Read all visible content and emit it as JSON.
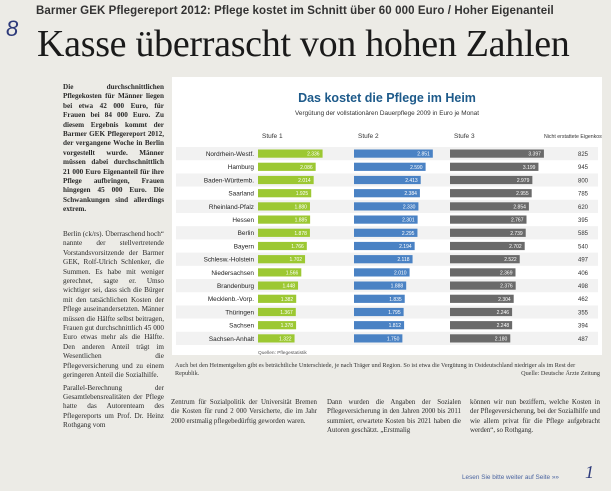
{
  "kicker": "Barmer GEK Pflegereport 2012: Pflege kostet im Schnitt über 60 000 Euro / Hoher Eigenanteil",
  "margin_mark": "8",
  "headline": "Kasse überrascht von hohen Zahlen",
  "intro": "Die durchschnittlichen Pflegekosten für Männer liegen bei etwa 42 000 Euro, für Frauen bei 84 000 Euro. Zu diesem Ergebnis kommt der Barmer GEK Pflegereport 2012, der vergangene Woche in Berlin vorgestellt wurde. Männer müssen dabei durchschnittlich 21 000 Euro Eigenanteil für ihre Pflege aufbringen, Frauen hingegen 45 000 Euro. Die Schwankungen sind allerdings extrem.",
  "body_left_1": "Berlin (ck/rs). Überraschend hoch“ nannte der stellvertretende Vorstandsvorsitzende der Barmer GEK, Rolf-Ulrich Schlenker, die Summen. Es habe mit weniger gerechnet, sagte er. Umso wichtiger sei, dass sich die Bürger mit den tatsächlichen Kosten der Pflege auseinandersetzten. Männer müssen die Hälfte selbst beitragen, Frauen gut durchschnittlich 45 000 Euro etwas mehr als die Hälfte. Den anderen Anteil trägt im Wesentlichen die Pflegeversicherung und zu einem geringeren Anteil die Sozialhilfe.",
  "body_left_2": "Parallel-Berechnung der Gesamtlebensrealitäten der Pflege hatte das Autorenteam des Pflegereports um Prof. Dr. Heinz Rothgang vom",
  "bottom_col_1": "Zentrum für Sozialpolitik der Universität Bremen die Kosten für rund 2 000 Versicherte, die im Jahr 2000 erstmalig pflegebedürftig geworden waren.",
  "bottom_col_2": "Dann wurden die Angaben der Sozialen Pflegeversicherung in den Jahren 2000 bis 2011 summiert, erwartete Kosten bis 2021 haben die Autoren geschätzt. „Erstmalig",
  "bottom_col_3": "können wir nun beziffern, welche Kosten in der Pflegeversicherung, bei der Sozialhilfe und wie allem privat für die Pflege aufgebracht werden“, so Rothgang.",
  "caption": "Auch bei den Heimentgelten gibt es beträchtliche Unterschiede, je nach Träger und Region. So ist etwa die Vergütung in Ostdeutschland niedriger als im Rest der Republik.",
  "caption_credit": "Quelle: Deutsche Ärzte Zeitung",
  "footer": "Lesen Sie bitte weiter auf Seite »»",
  "signature": "1",
  "colors": {
    "stufe1": "#9cc832",
    "stufe2": "#4a82c4",
    "stufe3": "#6a6a6a",
    "headline_blue": "#1d5a8a",
    "row_alt": "#f2f2f2"
  },
  "chart_data": {
    "type": "bar",
    "title": "Das kostet die Pflege im Heim",
    "subtitle": "Vergütung der vollstationären Dauerpflege 2009 in Euro je Monat",
    "stacked_layout": "three horizontal bars per row, one per care level",
    "legend": [
      "Stufe 1",
      "Stufe 2",
      "Stufe 3"
    ],
    "legend_extra": "Nicht erstattete Eigenkosten",
    "categories": [
      "Nordrhein-Westf.",
      "Hamburg",
      "Baden-Württemb.",
      "Saarland",
      "Rheinland-Pfalz",
      "Hessen",
      "Berlin",
      "Bayern",
      "Schlesw.-Holstein",
      "Niedersachsen",
      "Brandenburg",
      "Mecklenb.-Vorp.",
      "Thüringen",
      "Sachsen",
      "Sachsen-Anhalt"
    ],
    "series": [
      {
        "name": "Stufe 1",
        "values": [
          2336,
          2086,
          2014,
          1925,
          1880,
          1885,
          1878,
          1766,
          1702,
          1566,
          1448,
          1382,
          1367,
          1378,
          1322
        ]
      },
      {
        "name": "Stufe 2",
        "values": [
          2851,
          2590,
          2413,
          2384,
          2330,
          2301,
          2295,
          2194,
          2118,
          2010,
          1888,
          1835,
          1795,
          1812,
          1750
        ]
      },
      {
        "name": "Stufe 3",
        "values": [
          3397,
          3199,
          2979,
          2955,
          2854,
          2767,
          2739,
          2702,
          2522,
          2369,
          2376,
          2304,
          2246,
          2248,
          2180
        ]
      }
    ],
    "right_column": [
      825,
      945,
      800,
      785,
      620,
      395,
      585,
      540,
      497,
      406,
      498,
      462,
      355,
      394,
      487
    ],
    "source": "Quellen: Pflegestatistik"
  }
}
